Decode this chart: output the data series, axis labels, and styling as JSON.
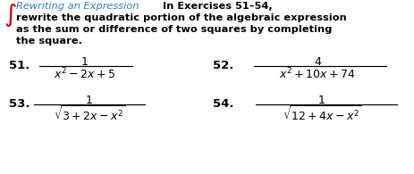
{
  "integral_color": "#cc0000",
  "teal_color": "#3080c0",
  "black": "#000000",
  "bg_color": "#ffffff",
  "fig_w": 4.64,
  "fig_h": 1.95,
  "dpi": 100,
  "header_italic": "Rewriting an Expression",
  "header_bold": "In Exercises 51–54,",
  "header_line2": "rewrite the quadratic portion of the algebraic expression",
  "header_line3": "as the sum or difference of two squares by completing",
  "header_line4": "the square.",
  "ex51_label": "51.",
  "ex51_num": "1",
  "ex51_den": "$x^2 - 2x + 5$",
  "ex52_label": "52.",
  "ex52_num": "4",
  "ex52_den": "$x^2 + 10x + 74$",
  "ex53_label": "53.",
  "ex53_num": "1",
  "ex53_den": "$\\sqrt{3 + 2x - x^2}$",
  "ex54_label": "54.",
  "ex54_num": "1",
  "ex54_den": "$\\sqrt{12 + 4x - x^2}$",
  "fs_small": 8.2,
  "fs_math": 9.0,
  "fs_label": 9.5,
  "fs_integral": 14
}
